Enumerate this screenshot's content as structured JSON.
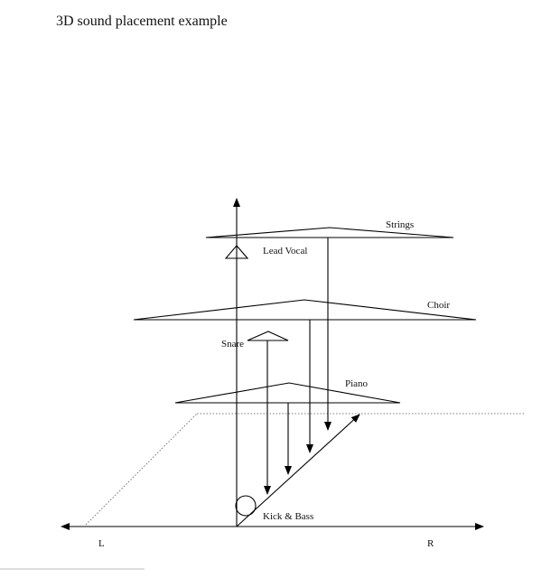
{
  "title": "3D sound placement example",
  "labels": {
    "strings": "Strings",
    "lead_vocal": "Lead Vocal",
    "choir": "Choir",
    "snare": "Snare",
    "piano": "Piano",
    "kick_bass": "Kick & Bass",
    "left": "L",
    "right": "R"
  }
}
